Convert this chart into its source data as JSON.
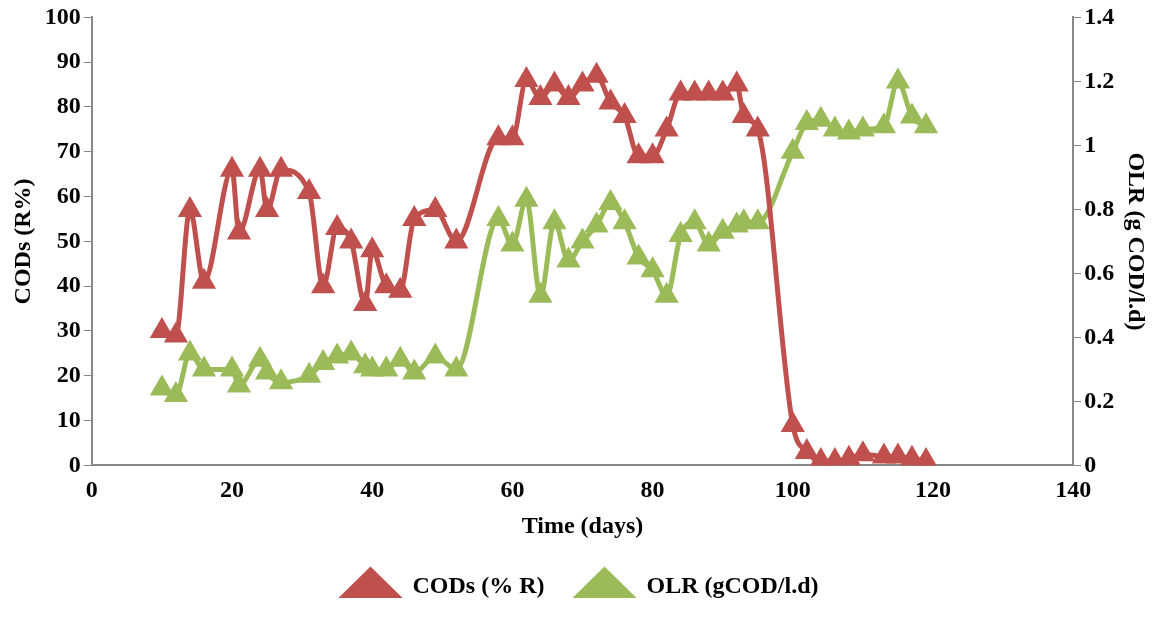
{
  "chart_data": {
    "type": "line",
    "xlabel": "Time (days)",
    "ylabel": "CODs (R%)",
    "y2label": "OLR (g COD/l.d)",
    "xlim": [
      0,
      140
    ],
    "xticks": [
      0,
      20,
      40,
      60,
      80,
      100,
      120,
      140
    ],
    "ylim": [
      0,
      100
    ],
    "yticks": [
      0,
      10,
      20,
      30,
      40,
      50,
      60,
      70,
      80,
      90,
      100
    ],
    "y2lim": [
      0,
      1.4
    ],
    "y2ticks": [
      0,
      {
        "value": 0.2,
        "label": "0.2"
      },
      {
        "value": 0.4,
        "label": "0.4"
      },
      {
        "value": 0.6,
        "label": "0.6"
      },
      {
        "value": 0.8,
        "label": "0.8"
      },
      1,
      {
        "value": 1.2,
        "label": "1.2"
      },
      {
        "value": 1.4,
        "label": "1.4"
      }
    ],
    "x": [
      10,
      12,
      14,
      16,
      20,
      21,
      24,
      25,
      27,
      31,
      33,
      35,
      37,
      39,
      40,
      42,
      44,
      46,
      49,
      52,
      58,
      60,
      62,
      64,
      66,
      68,
      70,
      72,
      74,
      76,
      78,
      80,
      82,
      84,
      86,
      88,
      90,
      92,
      93,
      95,
      100,
      102,
      104,
      106,
      108,
      110,
      113,
      115,
      117,
      119
    ],
    "series": [
      {
        "name": "CODs (% R)",
        "color": "#c0504d",
        "values": [
          30,
          29,
          57,
          41,
          66,
          52,
          66,
          57,
          66,
          61,
          40,
          53,
          50,
          36,
          48,
          40,
          39,
          55,
          57,
          50,
          73,
          73,
          86,
          82,
          85,
          82,
          85,
          87,
          81,
          78,
          69,
          69,
          75,
          83,
          83,
          83,
          83,
          85,
          78,
          75,
          9,
          3,
          1,
          1,
          1.5,
          2.5,
          2,
          2,
          1.5,
          1
        ]
      },
      {
        "name": "OLR (gCOD/l.d)",
        "color": "#9bbb59",
        "axis": "y2",
        "values": [
          0.24,
          0.22,
          0.35,
          0.3,
          0.3,
          0.25,
          0.33,
          0.29,
          0.26,
          0.28,
          0.32,
          0.34,
          0.35,
          0.31,
          0.3,
          0.3,
          0.33,
          0.29,
          0.34,
          0.3,
          0.77,
          0.69,
          0.83,
          0.53,
          0.76,
          0.64,
          0.7,
          0.75,
          0.82,
          0.76,
          0.65,
          0.61,
          0.53,
          0.72,
          0.76,
          0.69,
          0.73,
          0.75,
          0.76,
          0.76,
          0.98,
          1.07,
          1.08,
          1.05,
          1.04,
          1.05,
          1.06,
          1.2,
          1.09,
          1.06
        ]
      }
    ],
    "marker": "triangle",
    "line_style": "solid",
    "grid": false,
    "legend": "bottom"
  }
}
